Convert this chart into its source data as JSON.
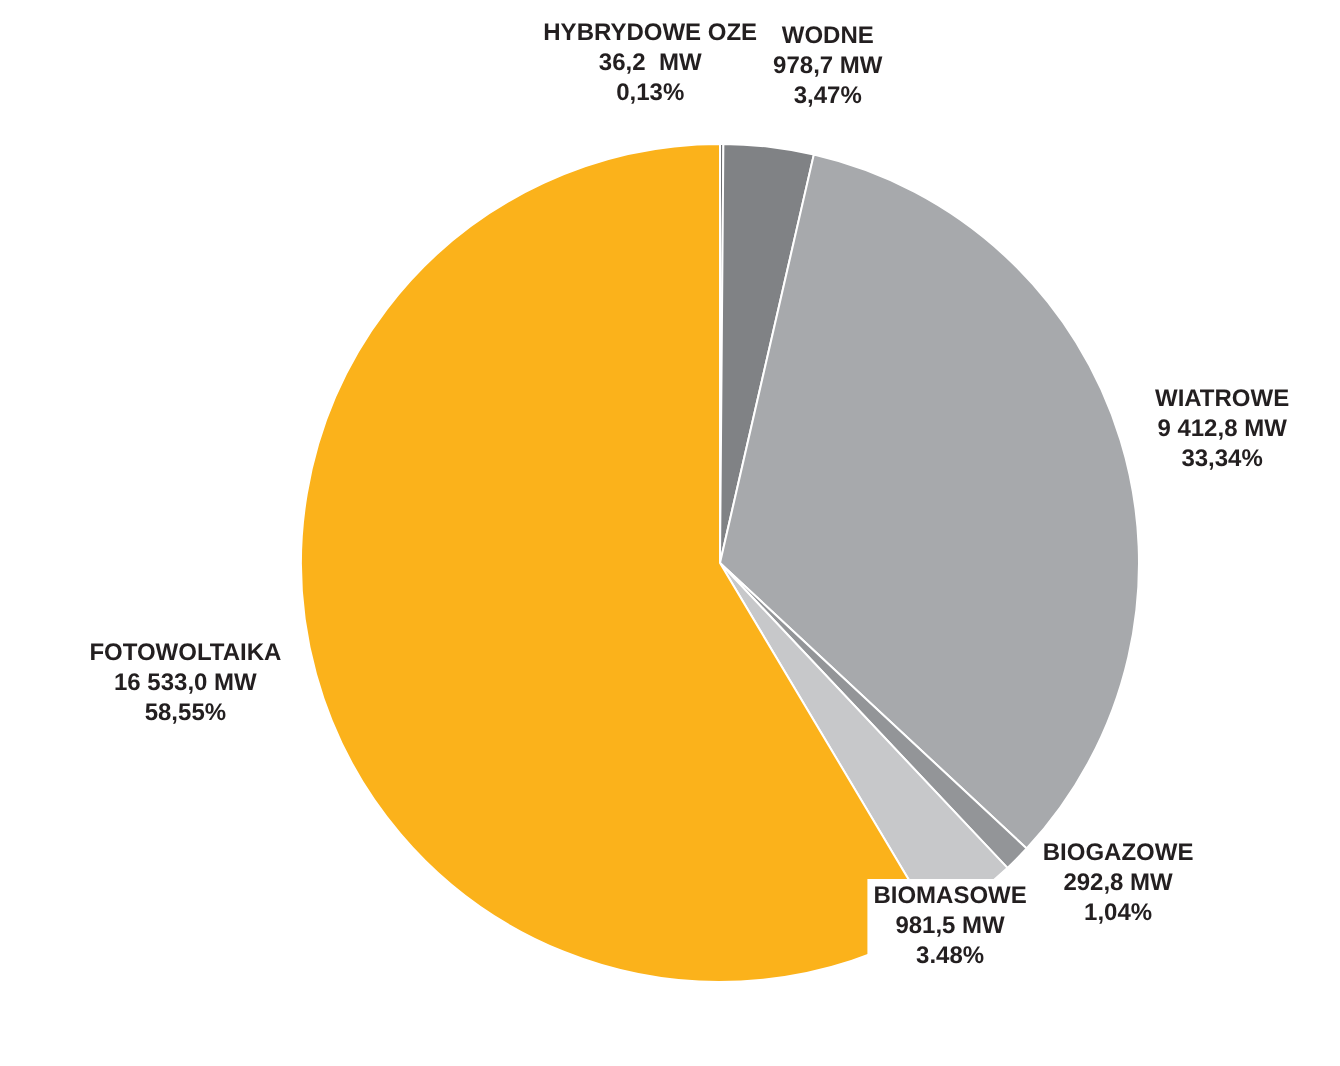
{
  "chart_data": {
    "type": "pie",
    "categories": [
      "HYBRYDOWE OZE",
      "WODNE",
      "WIATROWE",
      "BIOGAZOWE",
      "BIOMASOWE",
      "FOTOWOLTAIKA"
    ],
    "values": [
      36.2,
      978.7,
      9412.8,
      292.8,
      981.5,
      16533.0
    ],
    "value_labels": [
      "36,2  MW\n0,13%",
      "978,7 MW\n3,47%",
      "9 412,8 MW\n33,34%",
      "292,8 MW\n1,04%",
      "981,5 MW\n3.48%",
      "16 533,0 MW\n58,55%"
    ],
    "colors": [
      "#6d6e71",
      "#808285",
      "#a7a9ac",
      "#939598",
      "#c7c8ca",
      "#fbb21b"
    ],
    "legend": false
  }
}
